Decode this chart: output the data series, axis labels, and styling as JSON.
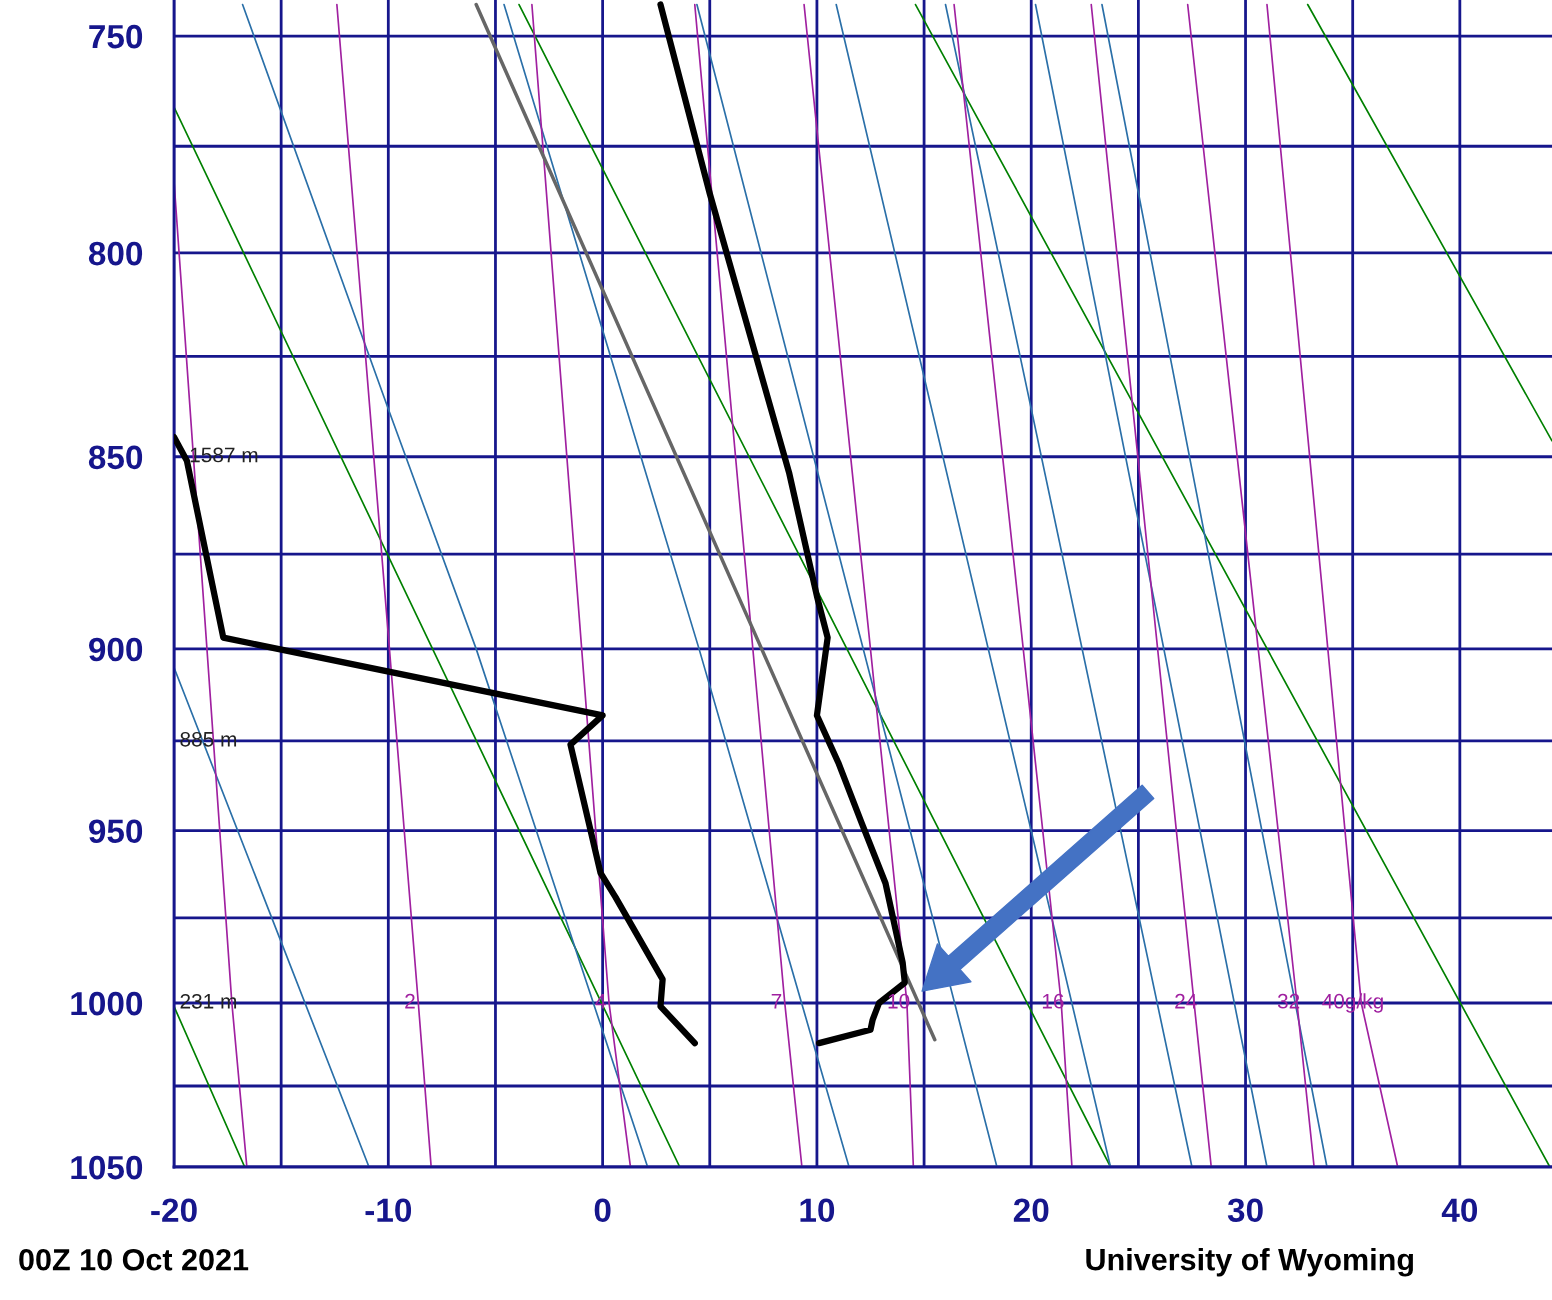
{
  "chart_data": {
    "type": "line",
    "xlim": [
      -20,
      44.3
    ],
    "ylim": [
      1050,
      742
    ],
    "xticks": [
      -20,
      {
        "value": -15,
        "label": null
      },
      -10,
      {
        "value": -5,
        "label": null
      },
      0,
      {
        "value": 5,
        "label": null
      },
      10,
      {
        "value": 15,
        "label": null
      },
      20,
      {
        "value": 25,
        "label": null
      },
      30,
      {
        "value": 35,
        "label": null
      },
      40
    ],
    "yticks": [
      750,
      {
        "value": 775,
        "label": null
      },
      800,
      {
        "value": 825,
        "label": null
      },
      850,
      {
        "value": 875,
        "label": null
      },
      900,
      {
        "value": 925,
        "label": null
      },
      950,
      {
        "value": 975,
        "label": null
      },
      1000,
      {
        "value": 1025,
        "label": null
      },
      1050
    ],
    "grid": true,
    "log": true,
    "series": [
      {
        "color": "#008000",
        "x": [
          -20.0,
          3.6
        ],
        "values": [
          766,
          1050
        ]
      },
      {
        "color": "#008000",
        "x": [
          -20.0,
          -16.7
        ],
        "values": [
          1001,
          1050
        ]
      },
      {
        "color": "#008000",
        "x": [
          -3.9,
          23.7
        ],
        "values": [
          743,
          1050
        ]
      },
      {
        "color": "#008000",
        "x": [
          14.6,
          44.2
        ],
        "values": [
          743,
          1050
        ]
      },
      {
        "color": "#008000",
        "x": [
          32.9,
          44.3
        ],
        "values": [
          743,
          846
        ]
      },
      {
        "color": "#2a6fa8",
        "x": [
          -20.0,
          -10.9
        ],
        "values": [
          905,
          1050
        ]
      },
      {
        "color": "#2a6fa8",
        "x": [
          -16.8,
          -10.0,
          -5.9,
          2.1
        ],
        "values": [
          743,
          838,
          900,
          1050
        ]
      },
      {
        "color": "#2a6fa8",
        "x": [
          -4.6,
          4.5,
          11.5
        ],
        "values": [
          743,
          900,
          1050
        ]
      },
      {
        "color": "#2a6fa8",
        "x": [
          4.4,
          18.4
        ],
        "values": [
          743,
          1050
        ]
      },
      {
        "color": "#2a6fa8",
        "x": [
          10.9,
          23.7
        ],
        "values": [
          743,
          1050
        ]
      },
      {
        "color": "#2a6fa8",
        "x": [
          16.0,
          27.5
        ],
        "values": [
          743,
          1050
        ]
      },
      {
        "color": "#2a6fa8",
        "x": [
          20.2,
          31.0
        ],
        "values": [
          743,
          1050
        ]
      },
      {
        "color": "#2a6fa8",
        "x": [
          23.3,
          33.8
        ],
        "values": [
          743,
          1050
        ]
      },
      {
        "color": "#a020a0",
        "x": [
          -20.0,
          -17.3,
          -16.6
        ],
        "values": [
          783,
          1000,
          1050
        ]
      },
      {
        "color": "#a020a0",
        "x": [
          -12.4,
          -8.6,
          -8.0
        ],
        "values": [
          743,
          1000,
          1050
        ]
      },
      {
        "color": "#a020a0",
        "x": [
          -3.3,
          0.3,
          1.3
        ],
        "values": [
          743,
          1000,
          1050
        ]
      },
      {
        "color": "#a020a0",
        "x": [
          4.3,
          8.5,
          9.3
        ],
        "values": [
          743,
          1000,
          1050
        ]
      },
      {
        "color": "#a020a0",
        "x": [
          9.4,
          14.2,
          14.5
        ],
        "values": [
          743,
          1000,
          1050
        ]
      },
      {
        "color": "#a020a0",
        "x": [
          16.4,
          21.4,
          21.9
        ],
        "values": [
          743,
          1000,
          1050
        ]
      },
      {
        "color": "#a020a0",
        "x": [
          22.8,
          27.6,
          28.4
        ],
        "values": [
          743,
          1000,
          1050
        ]
      },
      {
        "color": "#a020a0",
        "x": [
          27.3,
          32.4,
          33.2
        ],
        "values": [
          743,
          1000,
          1050
        ]
      },
      {
        "color": "#a020a0",
        "x": [
          31.0,
          35.4,
          37.1
        ],
        "values": [
          743,
          1000,
          1050
        ]
      },
      {
        "color": "#666666",
        "x": [
          -5.9,
          15.5
        ],
        "values": [
          743,
          1011
        ]
      },
      {
        "color": "#000000",
        "x": [
          2.7,
          5.0,
          8.7,
          10.0,
          10.5,
          10.0,
          11.0,
          12.1,
          13.2,
          14.0,
          14.1,
          12.9,
          12.6,
          12.5,
          10.1
        ],
        "values": [
          743,
          786,
          854,
          886,
          897,
          918,
          931,
          948,
          965,
          988,
          994,
          1000,
          1005,
          1008,
          1012
        ]
      },
      {
        "color": "#000000",
        "x": [
          -20.0,
          -19.4,
          -18.1,
          -17.7,
          0.0,
          -1.5,
          -0.1,
          0.6,
          2.8,
          2.7,
          4.3
        ],
        "values": [
          845,
          851,
          886,
          897,
          918,
          926,
          962,
          969,
          993,
          1001,
          1012
        ]
      }
    ],
    "annotations": [
      "1587 m",
      "885 m",
      "231 m",
      {
        "text": "2",
        "x": -8.6,
        "y": 1000
      },
      {
        "text": "4",
        "x": 0.3,
        "y": 1000
      },
      {
        "text": "7",
        "x": 8.5,
        "y": 1000
      },
      {
        "text": "10",
        "x": 14.2,
        "y": 1000
      },
      {
        "text": "16",
        "x": 21.4,
        "y": 1000
      },
      {
        "text": "24",
        "x": 27.6,
        "y": 1000
      },
      {
        "text": "32",
        "x": 32.4,
        "y": 1000
      },
      {
        "text": "40g/kg",
        "x": 35.4,
        "y": 1000
      },
      "00Z 10 Oct 2021",
      "University of Wyoming"
    ]
  }
}
